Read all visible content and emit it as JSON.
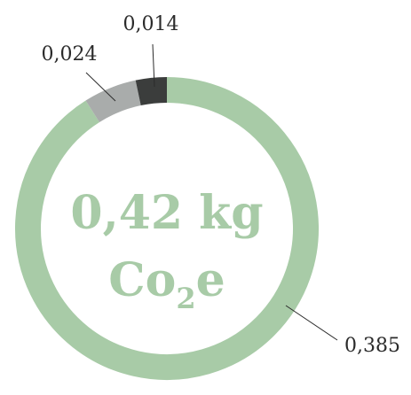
{
  "chart_data": {
    "type": "pie",
    "variant": "donut",
    "slices": [
      {
        "label": "0,385",
        "value": 0.385,
        "color": "#a8cba7"
      },
      {
        "label": "0,024",
        "value": 0.024,
        "color": "#a9acab"
      },
      {
        "label": "0,014",
        "value": 0.014,
        "color": "#3b3d3c"
      }
    ],
    "center": {
      "line1": "0,42 kg",
      "line2_main": "Co",
      "line2_sub": "2",
      "line2_end": "e"
    },
    "leader_line_color": "#2b2b2b"
  }
}
